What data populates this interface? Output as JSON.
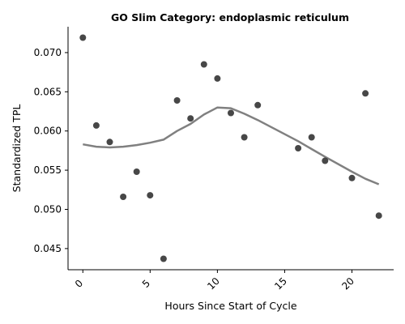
{
  "chart_data": {
    "type": "scatter",
    "title": "GO Slim Category: endoplasmic reticulum",
    "xlabel": "Hours Since Start of Cycle",
    "ylabel": "Standardized TPL",
    "xlim": [
      -1.1,
      23.1
    ],
    "ylim": [
      0.0423,
      0.0733
    ],
    "xticks": [
      0,
      5,
      10,
      15,
      20
    ],
    "yticks": [
      0.045,
      0.05,
      0.055,
      0.06,
      0.065,
      0.07
    ],
    "ytick_labels": [
      "0.045",
      "0.050",
      "0.055",
      "0.060",
      "0.065",
      "0.070"
    ],
    "grid": false,
    "points": [
      {
        "x": 0,
        "y": 0.0719
      },
      {
        "x": 1,
        "y": 0.0607
      },
      {
        "x": 2,
        "y": 0.0586
      },
      {
        "x": 3,
        "y": 0.0516
      },
      {
        "x": 4,
        "y": 0.0548
      },
      {
        "x": 5,
        "y": 0.0518
      },
      {
        "x": 6,
        "y": 0.0437
      },
      {
        "x": 7,
        "y": 0.0639
      },
      {
        "x": 8,
        "y": 0.0616
      },
      {
        "x": 9,
        "y": 0.0685
      },
      {
        "x": 10,
        "y": 0.0667
      },
      {
        "x": 11,
        "y": 0.0623
      },
      {
        "x": 12,
        "y": 0.0592
      },
      {
        "x": 13,
        "y": 0.0633
      },
      {
        "x": 16,
        "y": 0.0578
      },
      {
        "x": 17,
        "y": 0.0592
      },
      {
        "x": 18,
        "y": 0.0562
      },
      {
        "x": 20,
        "y": 0.054
      },
      {
        "x": 21,
        "y": 0.0648
      },
      {
        "x": 22,
        "y": 0.0492
      }
    ],
    "trend": [
      {
        "x": 0,
        "y": 0.0583
      },
      {
        "x": 1,
        "y": 0.058
      },
      {
        "x": 2,
        "y": 0.0579
      },
      {
        "x": 3,
        "y": 0.058
      },
      {
        "x": 4,
        "y": 0.0582
      },
      {
        "x": 5,
        "y": 0.0585
      },
      {
        "x": 6,
        "y": 0.0589
      },
      {
        "x": 7,
        "y": 0.06
      },
      {
        "x": 8,
        "y": 0.0609
      },
      {
        "x": 9,
        "y": 0.0621
      },
      {
        "x": 10,
        "y": 0.063
      },
      {
        "x": 11,
        "y": 0.0629
      },
      {
        "x": 12,
        "y": 0.0622
      },
      {
        "x": 13,
        "y": 0.0614
      },
      {
        "x": 16,
        "y": 0.0587
      },
      {
        "x": 17,
        "y": 0.0577
      },
      {
        "x": 18,
        "y": 0.0567
      },
      {
        "x": 20,
        "y": 0.0548
      },
      {
        "x": 21,
        "y": 0.0539
      },
      {
        "x": 22,
        "y": 0.0532
      }
    ],
    "colors": {
      "points": "#333333",
      "trend": "#808080",
      "spines": "#000000"
    }
  }
}
